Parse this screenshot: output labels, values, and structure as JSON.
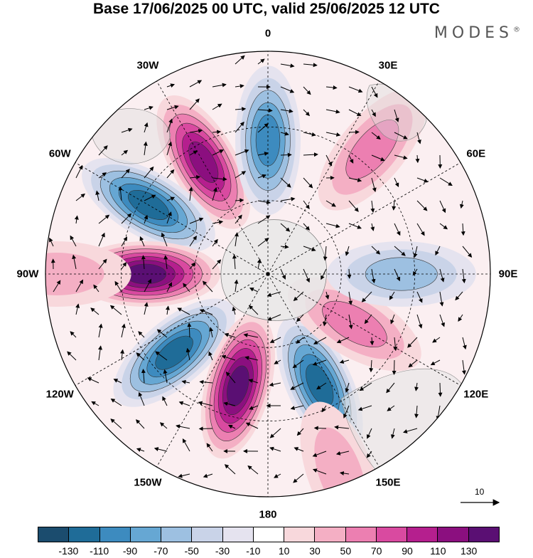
{
  "title": "Base 17/06/2025 00 UTC, valid 25/06/2025 12 UTC",
  "brand": "MODES",
  "brand_mark": "®",
  "longitude_labels": [
    "0",
    "30E",
    "60E",
    "90E",
    "120E",
    "150E",
    "180",
    "150W",
    "120W",
    "90W",
    "60W",
    "30W"
  ],
  "vector_reference": "10",
  "colorbar": {
    "colors": [
      "#1b4c6e",
      "#1f6c98",
      "#3d8bbf",
      "#66a7d3",
      "#9dc0e1",
      "#c9d3e8",
      "#e5e3ef",
      "#ffffff",
      "#f8d8dc",
      "#f4afc4",
      "#ec7fb1",
      "#d94aa0",
      "#b51f8e",
      "#8b0f7f",
      "#5a0f73"
    ],
    "ticks": [
      "-130",
      "-110",
      "-90",
      "-70",
      "-50",
      "-30",
      "-10",
      "10",
      "30",
      "50",
      "70",
      "90",
      "110",
      "130"
    ]
  },
  "anomaly_centers": [
    {
      "lon": 330,
      "r": 0.58,
      "value": 120
    },
    {
      "lon": 0,
      "r": 0.6,
      "value": -100
    },
    {
      "lon": 40,
      "r": 0.73,
      "value": 60
    },
    {
      "lon": 300,
      "r": 0.62,
      "value": -110
    },
    {
      "lon": 270,
      "r": 0.55,
      "value": 130
    },
    {
      "lon": 230,
      "r": 0.55,
      "value": -120
    },
    {
      "lon": 195,
      "r": 0.52,
      "value": 130
    },
    {
      "lon": 155,
      "r": 0.55,
      "value": -120
    },
    {
      "lon": 120,
      "r": 0.45,
      "value": 60
    },
    {
      "lon": 90,
      "r": 0.6,
      "value": -50
    },
    {
      "lon": 160,
      "r": 0.95,
      "value": 30
    },
    {
      "lon": 270,
      "r": 0.95,
      "value": 40
    }
  ]
}
